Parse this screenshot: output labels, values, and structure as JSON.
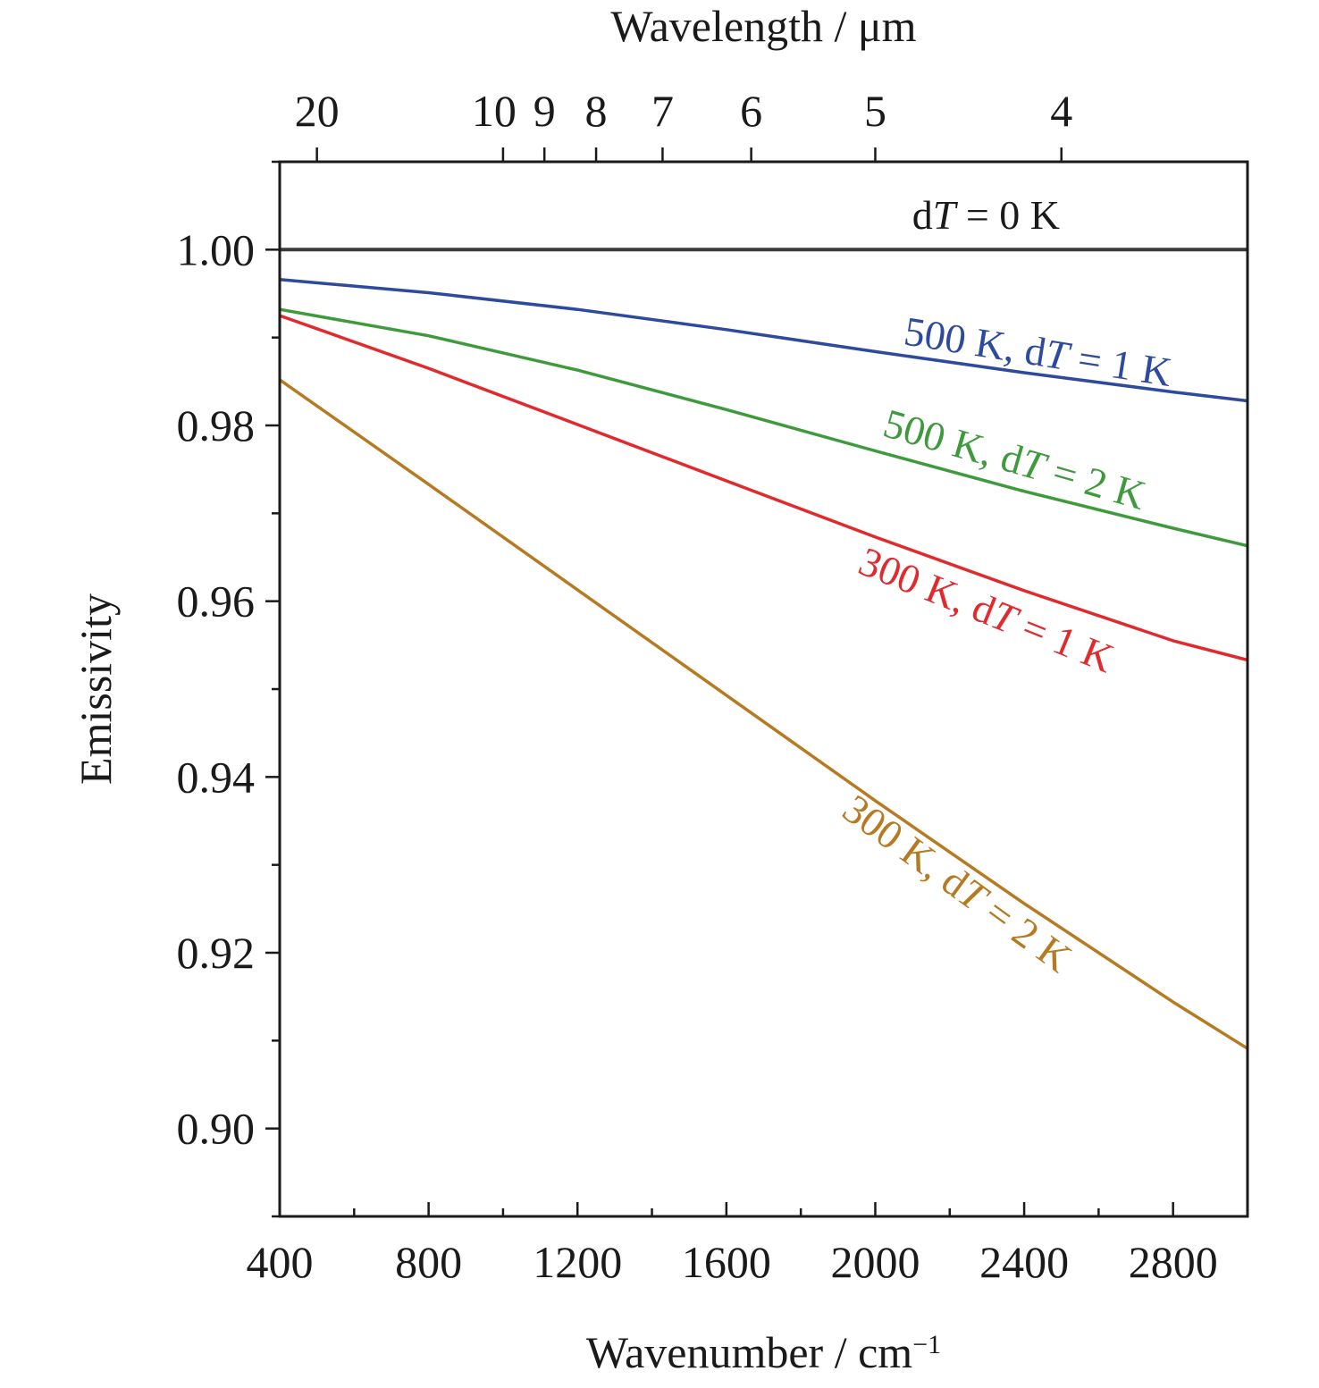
{
  "chart_data": {
    "type": "line",
    "xlabel": "Wavenumber / cm",
    "xlabel_superscript": "−1",
    "ylabel": "Emissivity",
    "top_axis_label": "Wavelength / μm",
    "xlim": [
      400,
      3000
    ],
    "ylim": [
      0.89,
      1.01
    ],
    "x_ticks": [
      400,
      800,
      1200,
      1600,
      2000,
      2400,
      2800
    ],
    "x_tick_labels": [
      "400",
      "800",
      "1200",
      "1600",
      "2000",
      "2400",
      "2800"
    ],
    "y_ticks": [
      0.9,
      0.92,
      0.94,
      0.96,
      0.98,
      1.0
    ],
    "y_tick_labels": [
      "0.90",
      "0.92",
      "0.94",
      "0.96",
      "0.98",
      "1.00"
    ],
    "top_ticks_um": [
      20,
      10,
      9,
      8,
      7,
      6,
      5,
      4
    ],
    "top_tick_labels": [
      "20",
      "10",
      "9",
      "8",
      "7",
      "6",
      "5",
      "4"
    ],
    "series": [
      {
        "label_parts": [
          {
            "t": "d",
            "i": false
          },
          {
            "t": "T",
            "i": true
          },
          {
            "t": " = 0 K",
            "i": false
          }
        ],
        "color": "#3a3a3a",
        "x": [
          400,
          3000
        ],
        "y": [
          1.0,
          1.0
        ]
      },
      {
        "label_parts": [
          {
            "t": "500 K, d",
            "i": false
          },
          {
            "t": "T",
            "i": true
          },
          {
            "t": " = 1 K",
            "i": false
          }
        ],
        "color": "#2e4a9e",
        "x": [
          400,
          800,
          1200,
          1600,
          2000,
          2400,
          2800,
          3000
        ],
        "y": [
          0.9966,
          0.9951,
          0.9932,
          0.9909,
          0.9884,
          0.986,
          0.9838,
          0.9828
        ]
      },
      {
        "label_parts": [
          {
            "t": "500 K, d",
            "i": false
          },
          {
            "t": "T",
            "i": true
          },
          {
            "t": " = 2 K",
            "i": false
          }
        ],
        "color": "#3f9a3c",
        "x": [
          400,
          800,
          1200,
          1600,
          2000,
          2400,
          2800,
          3000
        ],
        "y": [
          0.9932,
          0.9902,
          0.9863,
          0.9818,
          0.9771,
          0.9725,
          0.9683,
          0.9663
        ]
      },
      {
        "label_parts": [
          {
            "t": "300 K, d",
            "i": false
          },
          {
            "t": "T",
            "i": true
          },
          {
            "t": " = 1 K",
            "i": false
          }
        ],
        "color": "#e02a2e",
        "x": [
          400,
          800,
          1200,
          1600,
          2000,
          2400,
          2800,
          3000
        ],
        "y": [
          0.9925,
          0.9865,
          0.9801,
          0.9737,
          0.9673,
          0.9612,
          0.9555,
          0.9533
        ]
      },
      {
        "label_parts": [
          {
            "t": "300 K, d",
            "i": false
          },
          {
            "t": "T",
            "i": true
          },
          {
            "t": " = 2 K",
            "i": false
          }
        ],
        "color": "#b67a22",
        "x": [
          400,
          800,
          1200,
          1600,
          2000,
          2400,
          2800,
          3000
        ],
        "y": [
          0.9852,
          0.9733,
          0.9613,
          0.9493,
          0.9373,
          0.9256,
          0.9144,
          0.9091
        ]
      }
    ]
  }
}
